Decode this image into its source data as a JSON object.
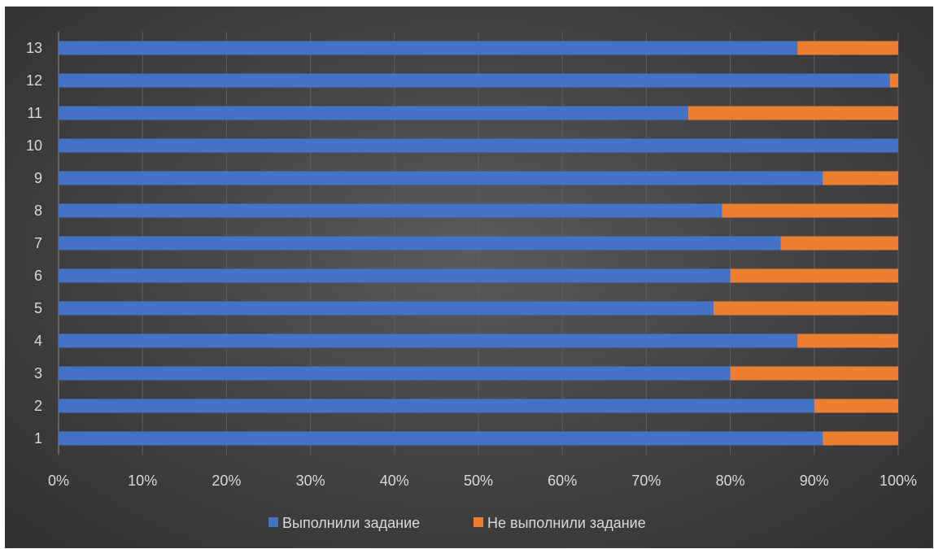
{
  "colors": {
    "completed": "#4472c4",
    "not_completed": "#ed7d31",
    "grid": "#5e5e5e",
    "axis": "#8c8c8c",
    "text": "#d9d9d9"
  },
  "chart_data": {
    "type": "bar",
    "orientation": "horizontal",
    "stacked": "percent",
    "title": "",
    "xlabel": "",
    "ylabel": "",
    "categories": [
      "1",
      "2",
      "3",
      "4",
      "5",
      "6",
      "7",
      "8",
      "9",
      "10",
      "11",
      "12",
      "13"
    ],
    "series": [
      {
        "name": "Выполнили задание",
        "values": [
          91,
          90,
          80,
          88,
          78,
          80,
          86,
          79,
          91,
          100,
          75,
          99,
          88
        ]
      },
      {
        "name": "Не выполнили задание",
        "values": [
          9,
          10,
          20,
          12,
          22,
          20,
          14,
          21,
          9,
          0,
          25,
          1,
          12
        ]
      }
    ],
    "xlim": [
      0,
      100
    ],
    "x_ticks": [
      "0%",
      "10%",
      "20%",
      "30%",
      "40%",
      "50%",
      "60%",
      "70%",
      "80%",
      "90%",
      "100%"
    ],
    "grid": true,
    "legend_position": "bottom"
  }
}
